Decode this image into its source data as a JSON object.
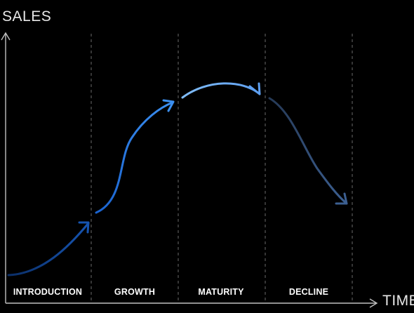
{
  "axes": {
    "y_label": "SALES",
    "x_label": "TIME"
  },
  "stages": [
    {
      "label": "INTRODUCTION",
      "color": "#0d3f8a"
    },
    {
      "label": "GROWTH",
      "color": "#2f80ea"
    },
    {
      "label": "MATURITY",
      "color": "#74b0f5"
    },
    {
      "label": "DECLINE",
      "color": "#34527f"
    }
  ],
  "colors": {
    "background": "#000000",
    "axis": "#bfbfbf",
    "divider": "#6a6a6a"
  }
}
